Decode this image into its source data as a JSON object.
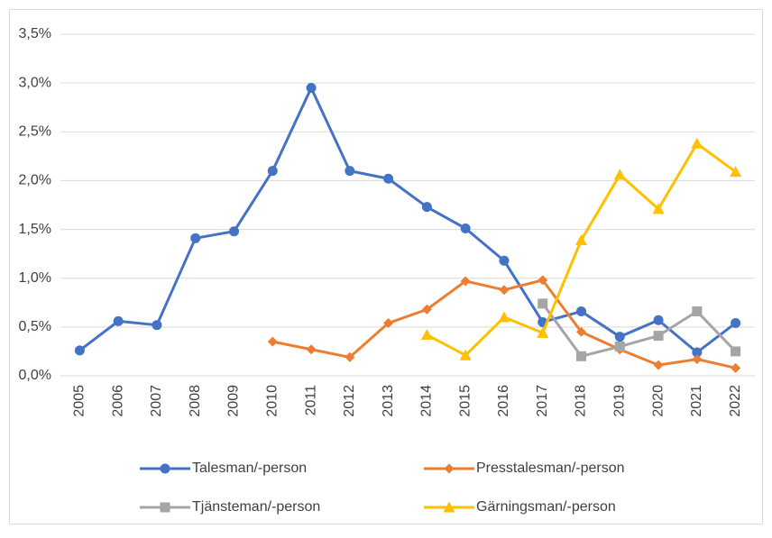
{
  "chart_data": {
    "type": "line",
    "categories": [
      "2005",
      "2006",
      "2007",
      "2008",
      "2009",
      "2010",
      "2011",
      "2012",
      "2013",
      "2014",
      "2015",
      "2016",
      "2017",
      "2018",
      "2019",
      "2020",
      "2021",
      "2022"
    ],
    "ylim": [
      0,
      3.5
    ],
    "yticks": [
      {
        "value": 0,
        "label": "0,0%"
      },
      {
        "value": 0.5,
        "label": "0,5%"
      },
      {
        "value": 1,
        "label": "1,0%"
      },
      {
        "value": 1.5,
        "label": "1,5%"
      },
      {
        "value": 2,
        "label": "2,0%"
      },
      {
        "value": 2.5,
        "label": "2,5%"
      },
      {
        "value": 3,
        "label": "3,0%"
      },
      {
        "value": 3.5,
        "label": "3,5%"
      }
    ],
    "grid": true,
    "series": [
      {
        "name": "Talesman/-person",
        "color": "#4472c4",
        "marker": "circle",
        "values": [
          0.26,
          0.56,
          0.52,
          1.41,
          1.48,
          2.1,
          2.95,
          2.1,
          2.02,
          1.73,
          1.51,
          1.18,
          0.55,
          0.66,
          0.4,
          0.57,
          0.24,
          0.54
        ]
      },
      {
        "name": "Presstalesman/-person",
        "color": "#ed7d31",
        "marker": "diamond",
        "values": [
          null,
          null,
          null,
          null,
          null,
          0.35,
          0.27,
          0.19,
          0.54,
          0.68,
          0.97,
          0.88,
          0.98,
          0.45,
          0.27,
          0.11,
          0.17,
          0.08
        ]
      },
      {
        "name": "Tjänsteman/-person",
        "color": "#a5a5a5",
        "marker": "square",
        "values": [
          null,
          null,
          null,
          null,
          null,
          null,
          null,
          null,
          null,
          null,
          null,
          null,
          0.74,
          0.2,
          0.3,
          0.41,
          0.66,
          0.25
        ]
      },
      {
        "name": "Gärningsman/-person",
        "color": "#ffc000",
        "marker": "triangle",
        "values": [
          null,
          null,
          null,
          null,
          null,
          null,
          null,
          null,
          null,
          0.42,
          0.21,
          0.6,
          0.44,
          1.39,
          2.06,
          1.71,
          2.38,
          2.09
        ]
      }
    ]
  }
}
